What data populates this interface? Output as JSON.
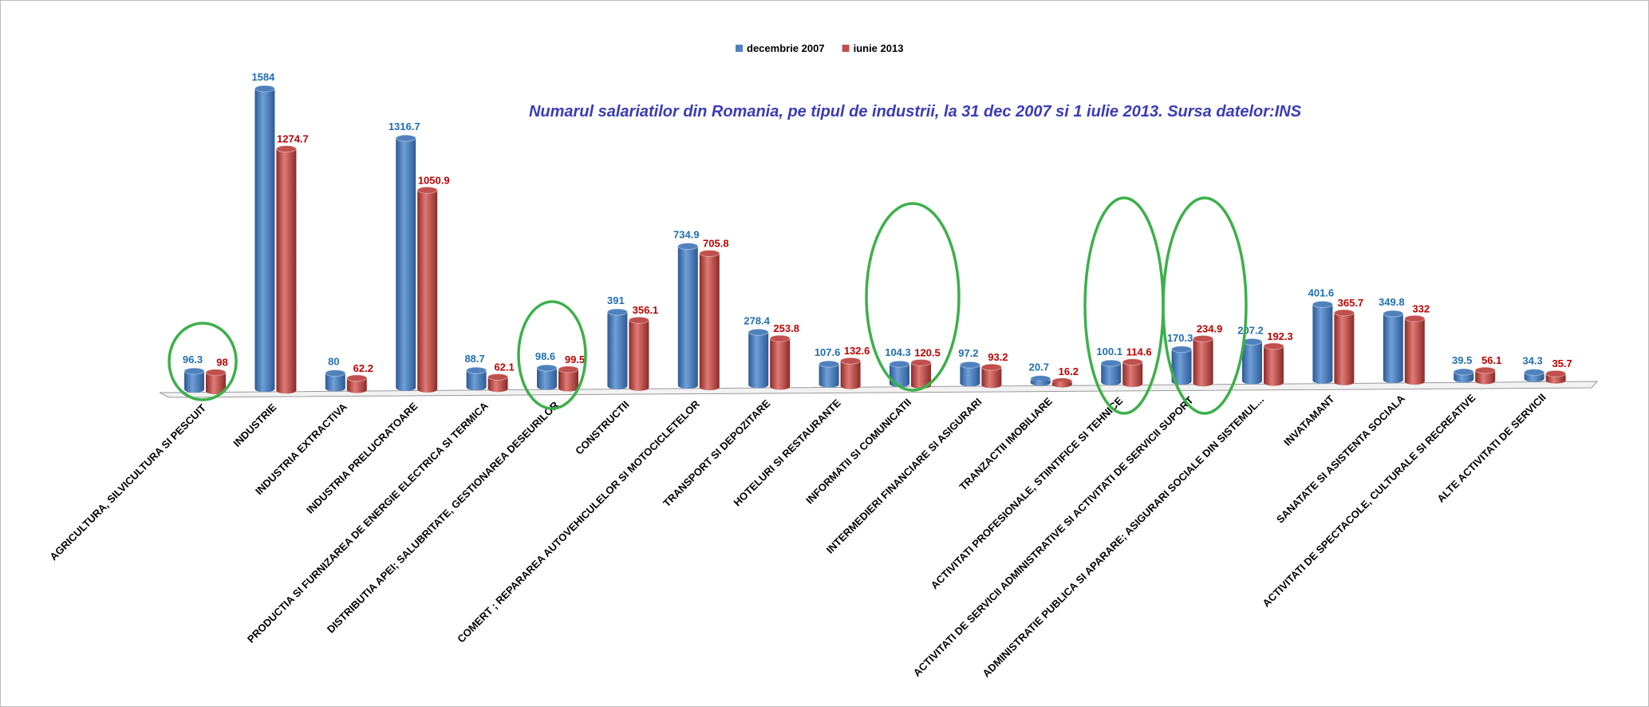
{
  "chart_data": {
    "type": "bar",
    "title": "Numarul salariatilor din Romania, pe tipul de industrii, la 31 dec 2007 si 1 iulie 2013. Sursa datelor:INS",
    "categories": [
      "AGRICULTURA, SILVICULTURA SI PESCUIT",
      "INDUSTRIE",
      "INDUSTRIA EXTRACTIVA",
      "INDUSTRIA PRELUCRATOARE",
      "PRODUCTIA SI FURNIZAREA DE ENERGIE ELECTRICA SI TERMICA",
      "DISTRIBUTIA APEI; SALUBRITATE, GESTIONAREA DESEURILOR",
      "CONSTRUCTII",
      "COMERT ; REPARAREA AUTOVEHICULELOR SI MOTOCICLETELOR",
      "TRANSPORT SI DEPOZITARE",
      "HOTELURI SI RESTAURANTE",
      "INFORMATII SI COMUNICATII",
      "INTERMEDIERI FINANCIARE SI ASIGURARI",
      "TRANZACTII IMOBILIARE",
      "ACTIVITATI PROFESIONALE, STIINTIFICE SI TEHNICE",
      "ACTIVITATI DE SERVICII ADMINISTRATIVE SI ACTIVITATI DE SERVICII SUPORT",
      "ADMINISTRATIE PUBLICA SI APARARE; ASIGURARI SOCIALE DIN SISTEMUL...",
      "INVATAMANT",
      "SANATATE SI ASISTENTA SOCIALA",
      "ACTIVITATI DE SPECTACOLE, CULTURALE SI RECREATIVE",
      "ALTE ACTIVITATI DE SERVICII"
    ],
    "series": [
      {
        "name": "decembrie 2007",
        "color": "#4f81bd",
        "values": [
          96.3,
          1584,
          80,
          1316.7,
          88.7,
          98.6,
          391,
          734.9,
          278.4,
          107.6,
          104.3,
          97.2,
          20.7,
          100.1,
          170.3,
          207.2,
          401.6,
          349.8,
          39.5,
          34.3
        ]
      },
      {
        "name": "iunie 2013",
        "color": "#c0504d",
        "values": [
          98,
          1274.7,
          62.2,
          1050.9,
          62.1,
          99.5,
          356.1,
          705.8,
          253.8,
          132.6,
          120.5,
          93.2,
          16.2,
          114.6,
          234.9,
          192.3,
          365.7,
          332,
          56.1,
          35.7
        ]
      }
    ]
  }
}
